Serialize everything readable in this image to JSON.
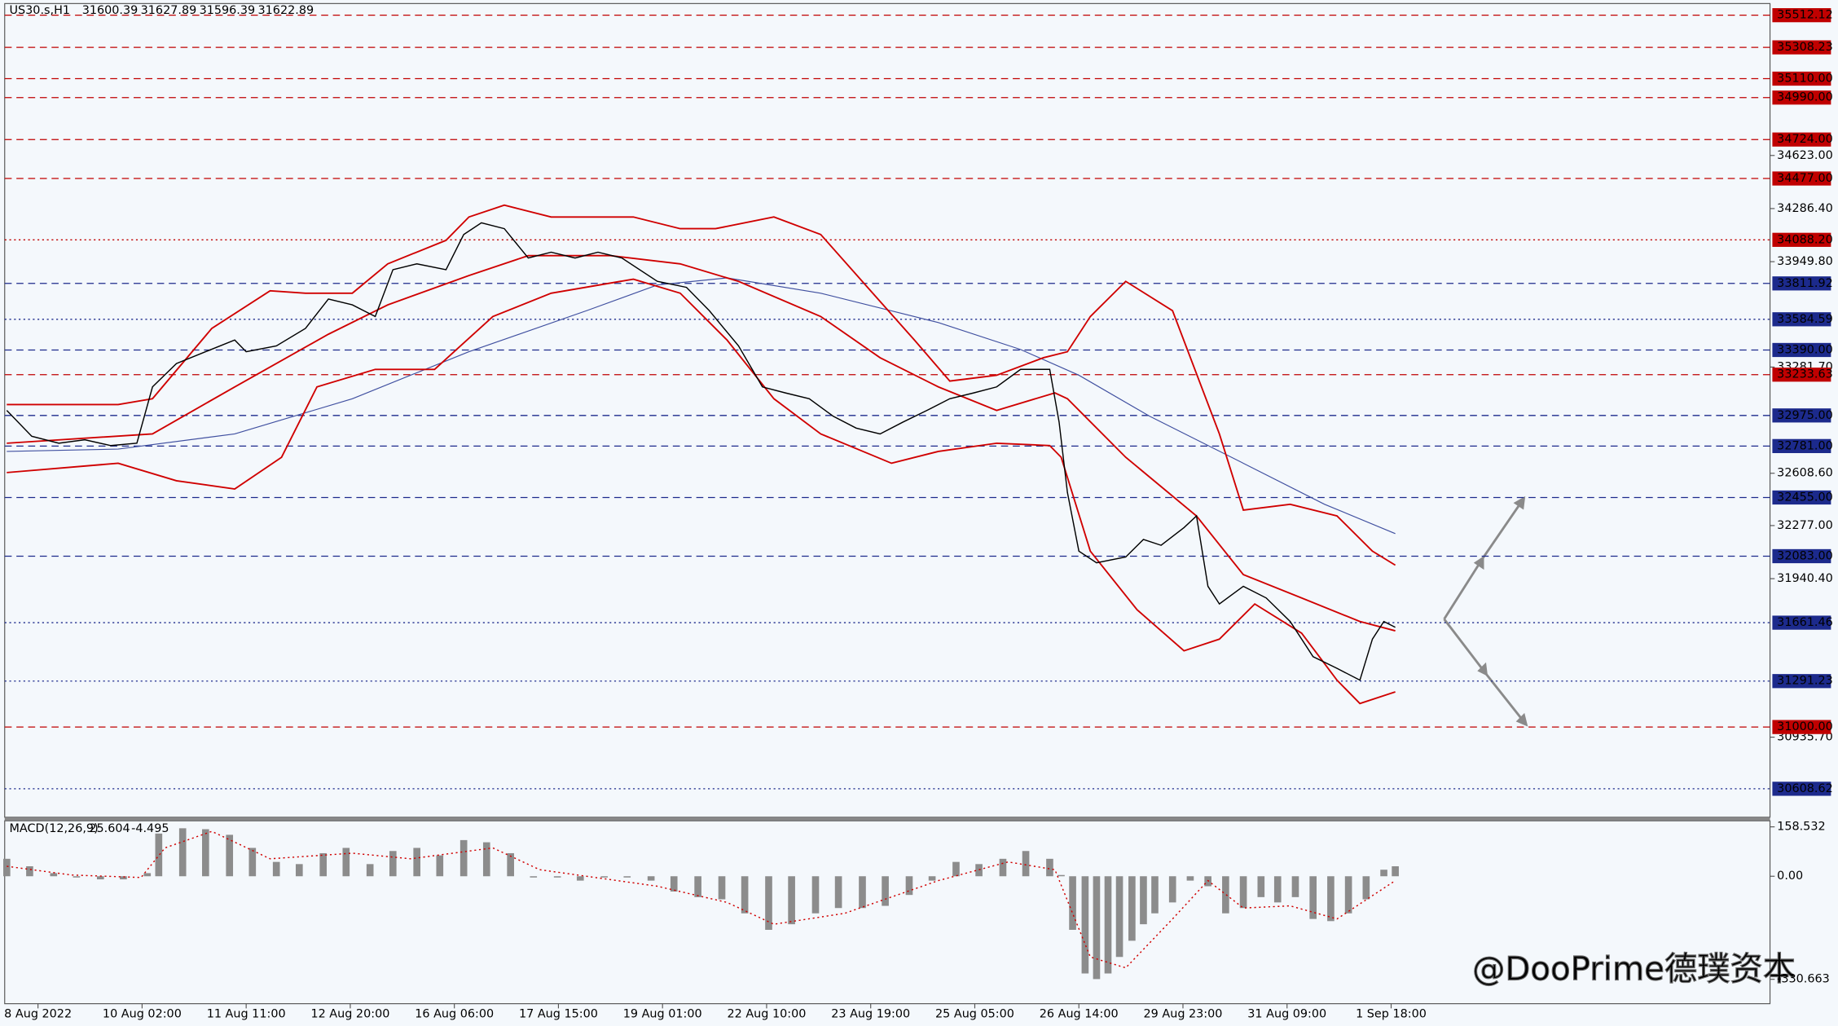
{
  "chart_data": [
    {
      "type": "line",
      "title": "US30.s,H1",
      "ohlc": [
        31600.39,
        31627.89,
        31596.39,
        31622.89
      ],
      "watermark": "@DooPrime德璞资本",
      "xlim": [
        -0.32,
        16.64
      ],
      "xticks": [
        {
          "value": 0,
          "label": "8 Aug 2022"
        },
        {
          "value": 1,
          "label": "10 Aug 02:00"
        },
        {
          "value": 2,
          "label": "11 Aug 11:00"
        },
        {
          "value": 3,
          "label": "12 Aug 20:00"
        },
        {
          "value": 4,
          "label": "16 Aug 06:00"
        },
        {
          "value": 5,
          "label": "17 Aug 15:00"
        },
        {
          "value": 6,
          "label": "19 Aug 01:00"
        },
        {
          "value": 7,
          "label": "22 Aug 10:00"
        },
        {
          "value": 8,
          "label": "23 Aug 19:00"
        },
        {
          "value": 9,
          "label": "25 Aug 05:00"
        },
        {
          "value": 10,
          "label": "26 Aug 14:00"
        },
        {
          "value": 11,
          "label": "29 Aug 23:00"
        },
        {
          "value": 12,
          "label": "31 Aug 09:00"
        },
        {
          "value": 13,
          "label": "1 Sep 18:00"
        }
      ],
      "ylim": [
        30428,
        35586
      ],
      "yticks": [
        {
          "value": 34623,
          "label": "34623.00"
        },
        {
          "value": 34286.4,
          "label": "34286.40"
        },
        {
          "value": 33949.8,
          "label": "33949.80"
        },
        {
          "value": 33281.7,
          "label": "33281.70"
        },
        {
          "value": 32608.6,
          "label": "32608.60"
        },
        {
          "value": 32277,
          "label": "32277.00"
        },
        {
          "value": 31940.4,
          "label": "31940.40"
        },
        {
          "value": 30935.7,
          "label": "30935.70"
        }
      ],
      "levels": [
        {
          "value": 35512.12,
          "label": "35512.12",
          "color": "#c00000",
          "style": "dashed"
        },
        {
          "value": 35308.23,
          "label": "35308.23",
          "color": "#c00000",
          "style": "dashed"
        },
        {
          "value": 35110,
          "label": "35110.00",
          "color": "#c00000",
          "style": "dashed"
        },
        {
          "value": 34990,
          "label": "34990.00",
          "color": "#c00000",
          "style": "dashed"
        },
        {
          "value": 34724,
          "label": "34724.00",
          "color": "#c00000",
          "style": "dashed"
        },
        {
          "value": 34477,
          "label": "34477.00",
          "color": "#c00000",
          "style": "dashed"
        },
        {
          "value": 34088.2,
          "label": "34088.20",
          "color": "#c00000",
          "style": "dotted"
        },
        {
          "value": 33811.92,
          "label": "33811.92",
          "color": "#1c2a8c",
          "style": "dashed"
        },
        {
          "value": 33584.59,
          "label": "33584.59",
          "color": "#1c2a8c",
          "style": "dotted"
        },
        {
          "value": 33390,
          "label": "33390.00",
          "color": "#1c2a8c",
          "style": "dashed"
        },
        {
          "value": 33233.63,
          "label": "33233.63",
          "color": "#c00000",
          "style": "dashed"
        },
        {
          "value": 32975,
          "label": "32975.00",
          "color": "#1c2a8c",
          "style": "dashed"
        },
        {
          "value": 32781,
          "label": "32781.00",
          "color": "#1c2a8c",
          "style": "dashed"
        },
        {
          "value": 32455,
          "label": "32455.00",
          "color": "#1c2a8c",
          "style": "dashed"
        },
        {
          "value": 32083,
          "label": "32083.00",
          "color": "#1c2a8c",
          "style": "dashed"
        },
        {
          "value": 31661.46,
          "label": "31661.46",
          "color": "#1c2a8c",
          "style": "dotted"
        },
        {
          "value": 31291.23,
          "label": "31291.23",
          "color": "#1c2a8c",
          "style": "dotted"
        },
        {
          "value": 31000,
          "label": "31000.00",
          "color": "#c00000",
          "style": "dashed"
        },
        {
          "value": 30608.62,
          "label": "30608.62",
          "color": "#1c2a8c",
          "style": "dotted"
        }
      ],
      "series": [
        {
          "color": "#4050a0",
          "width": 0.8,
          "x": [
            -0.3,
            0.77,
            1.89,
            3.02,
            4.14,
            5.27,
            5.95,
            6.62,
            7.52,
            8.65,
            9.44,
            10.0,
            10.68,
            11.58,
            12.36,
            13.04
          ],
          "values": [
            32747,
            32762,
            32858,
            33081,
            33379,
            33639,
            33802,
            33847,
            33750,
            33564,
            33393,
            33230,
            32970,
            32672,
            32412,
            32226
          ]
        },
        {
          "color": "#d00000",
          "width": 1.3,
          "x": [
            -0.3,
            0.77,
            1.1,
            1.67,
            2.23,
            2.57,
            3.02,
            3.36,
            3.92,
            4.14,
            4.48,
            4.93,
            5.72,
            6.17,
            6.51,
            7.07,
            7.52,
            7.97,
            8.42,
            8.76,
            9.21,
            9.66,
            9.89,
            10.11,
            10.45,
            10.9,
            11.35,
            11.58,
            12.03,
            12.48,
            12.82,
            13.04
          ],
          "values": [
            33044,
            33044,
            33081,
            33527,
            33765,
            33750,
            33750,
            33936,
            34085,
            34233,
            34308,
            34233,
            34233,
            34159,
            34159,
            34233,
            34122,
            33787,
            33453,
            33193,
            33230,
            33341,
            33379,
            33602,
            33825,
            33639,
            32858,
            32375,
            32412,
            32338,
            32115,
            32026
          ]
        },
        {
          "color": "#d00000",
          "width": 1.3,
          "x": [
            -0.3,
            1.1,
            1.89,
            2.79,
            3.36,
            4.14,
            4.71,
            5.5,
            6.17,
            6.73,
            7.52,
            8.09,
            8.65,
            9.21,
            9.77,
            9.89,
            10.45,
            11.13,
            11.58,
            12.14,
            12.7,
            13.04
          ],
          "values": [
            32799,
            32858,
            33156,
            33490,
            33676,
            33862,
            33988,
            33988,
            33936,
            33825,
            33602,
            33341,
            33156,
            33007,
            33118,
            33081,
            32710,
            32338,
            31966,
            31818,
            31669,
            31610
          ]
        },
        {
          "color": "#d00000",
          "width": 1.3,
          "x": [
            -0.3,
            0.77,
            1.33,
            1.89,
            2.34,
            2.68,
            3.24,
            3.81,
            4.37,
            4.93,
            5.72,
            6.17,
            6.62,
            7.07,
            7.52,
            8.2,
            8.65,
            9.21,
            9.72,
            9.83,
            10.11,
            10.56,
            11.01,
            11.35,
            11.69,
            12.14,
            12.48,
            12.7,
            13.04
          ],
          "values": [
            32613,
            32672,
            32561,
            32509,
            32710,
            33156,
            33267,
            33267,
            33602,
            33750,
            33839,
            33750,
            33453,
            33081,
            32858,
            32672,
            32747,
            32799,
            32784,
            32710,
            32115,
            31743,
            31483,
            31557,
            31780,
            31595,
            31297,
            31149,
            31223
          ]
        },
        {
          "color": "#000000",
          "width": 1,
          "x": [
            -0.3,
            -0.06,
            0.2,
            0.45,
            0.7,
            0.95,
            1.1,
            1.33,
            1.61,
            1.89,
            2.0,
            2.29,
            2.57,
            2.79,
            3.02,
            3.24,
            3.41,
            3.64,
            3.92,
            4.09,
            4.26,
            4.48,
            4.71,
            4.93,
            5.16,
            5.38,
            5.61,
            5.95,
            6.23,
            6.45,
            6.73,
            6.96,
            7.18,
            7.41,
            7.64,
            7.86,
            8.09,
            8.31,
            8.54,
            8.76,
            8.99,
            9.21,
            9.44,
            9.72,
            9.81,
            9.89,
            10.0,
            10.17,
            10.45,
            10.62,
            10.79,
            11.01,
            11.13,
            11.24,
            11.35,
            11.58,
            11.8,
            12.03,
            12.25,
            12.48,
            12.7,
            12.82,
            12.93,
            13.04
          ],
          "values": [
            33007,
            32843,
            32799,
            32821,
            32784,
            32799,
            33156,
            33304,
            33379,
            33453,
            33379,
            33416,
            33527,
            33713,
            33676,
            33602,
            33899,
            33936,
            33899,
            34122,
            34196,
            34159,
            33973,
            34010,
            33973,
            34010,
            33973,
            33825,
            33787,
            33639,
            33416,
            33156,
            33118,
            33081,
            32970,
            32895,
            32858,
            32933,
            33007,
            33081,
            33118,
            33156,
            33267,
            33267,
            32933,
            32487,
            32115,
            32041,
            32078,
            32189,
            32152,
            32264,
            32338,
            31892,
            31780,
            31892,
            31818,
            31669,
            31446,
            31372,
            31297,
            31557,
            31669,
            31632
          ]
        }
      ]
    },
    {
      "type": "bar",
      "title": "MACD(12,26,9)",
      "readings": [
        25.604,
        -4.495
      ],
      "ylim": [
        -409,
        178
      ],
      "yticks": [
        158.532,
        {
          "value": 0,
          "label": "0.00"
        },
        -330.663
      ],
      "series": [
        {
          "type": "bar",
          "color": "#8c8c8c",
          "x": [
            -0.3,
            -0.08,
            0.15,
            0.37,
            0.6,
            0.82,
            1.05,
            1.16,
            1.39,
            1.61,
            1.84,
            2.06,
            2.29,
            2.51,
            2.74,
            2.96,
            3.19,
            3.41,
            3.64,
            3.86,
            4.09,
            4.31,
            4.54,
            4.76,
            4.99,
            5.21,
            5.44,
            5.66,
            5.89,
            6.11,
            6.34,
            6.57,
            6.79,
            7.02,
            7.24,
            7.47,
            7.69,
            7.92,
            8.14,
            8.37,
            8.59,
            8.82,
            9.04,
            9.27,
            9.49,
            9.72,
            9.83,
            9.94,
            10.06,
            10.17,
            10.28,
            10.39,
            10.51,
            10.62,
            10.73,
            10.9,
            11.07,
            11.24,
            11.41,
            11.58,
            11.75,
            11.91,
            12.08,
            12.25,
            12.42,
            12.59,
            12.76,
            12.93,
            13.04
          ],
          "values": [
            56,
            32,
            10,
            -4,
            -10,
            -10,
            10,
            137,
            154,
            151,
            133,
            91,
            46,
            39,
            74,
            91,
            39,
            81,
            91,
            67,
            116,
            109,
            74,
            -4,
            -4,
            -14,
            -4,
            -4,
            -14,
            -49,
            -67,
            -74,
            -119,
            -172,
            -154,
            -119,
            -102,
            -102,
            -95,
            -60,
            -14,
            46,
            39,
            56,
            81,
            56,
            4,
            -172,
            -312,
            -330,
            -312,
            -259,
            -207,
            -154,
            -119,
            -84,
            -14,
            -32,
            -119,
            -102,
            -67,
            -84,
            -67,
            -137,
            -144,
            -119,
            -74,
            21,
            32
          ]
        },
        {
          "type": "line",
          "color": "#d00000",
          "style": "dotted",
          "x": [
            -0.3,
            0.32,
            0.99,
            1.22,
            1.67,
            2.23,
            3.02,
            3.58,
            4.37,
            4.82,
            5.95,
            6.62,
            7.07,
            7.75,
            8.65,
            9.32,
            9.77,
            10.11,
            10.45,
            10.9,
            11.24,
            11.58,
            12.03,
            12.48,
            13.04
          ],
          "values": [
            32,
            4,
            -4,
            91,
            144,
            56,
            74,
            56,
            91,
            21,
            -32,
            -84,
            -154,
            -119,
            -14,
            46,
            21,
            -259,
            -294,
            -137,
            -14,
            -102,
            -95,
            -137,
            -14
          ]
        }
      ]
    }
  ]
}
